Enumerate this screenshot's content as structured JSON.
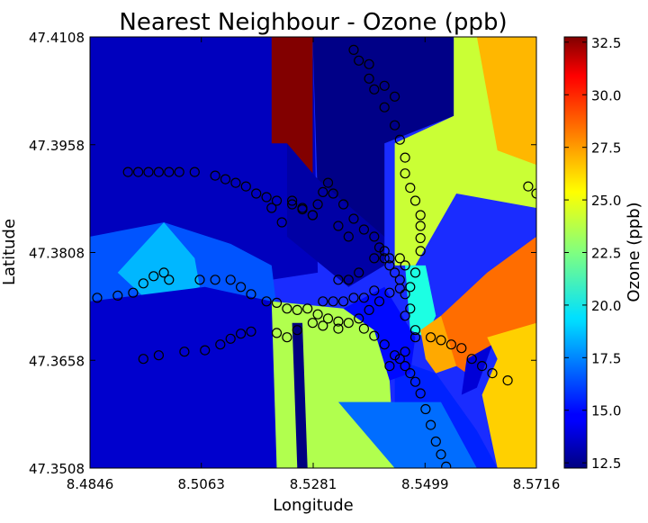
{
  "chart_data": {
    "type": "heatmap",
    "title": "Nearest Neighbour - Ozone (ppb)",
    "xlabel": "Longitude",
    "ylabel": "Latitude",
    "xlim": [
      8.4846,
      8.5716
    ],
    "ylim": [
      47.3508,
      47.4108
    ],
    "x_ticks": [
      "8.4846",
      "8.5063",
      "8.5281",
      "8.5499",
      "8.5716"
    ],
    "y_ticks": [
      "47.3508",
      "47.3658",
      "47.3808",
      "47.3958",
      "47.4108"
    ],
    "colorbar": {
      "label": "Ozone (ppb)",
      "range": [
        12.25,
        32.75
      ],
      "ticks": [
        "12.5",
        "15.0",
        "17.5",
        "20.0",
        "22.5",
        "25.0",
        "27.5",
        "30.0",
        "32.5"
      ],
      "colormap": "jet"
    },
    "regions": [
      {
        "value": 13.5,
        "poly": [
          [
            8.4846,
            47.4108
          ],
          [
            8.528,
            47.4108
          ],
          [
            8.529,
            47.378
          ],
          [
            8.52,
            47.377
          ],
          [
            8.4846,
            47.378
          ]
        ]
      },
      {
        "value": 12.4,
        "poly": [
          [
            8.528,
            47.4108
          ],
          [
            8.5555,
            47.4108
          ],
          [
            8.5555,
            47.3998
          ],
          [
            8.542,
            47.396
          ],
          [
            8.542,
            47.383
          ],
          [
            8.537,
            47.381
          ],
          [
            8.529,
            47.388
          ]
        ]
      },
      {
        "value": 32.7,
        "poly": [
          [
            8.52,
            47.4108
          ],
          [
            8.528,
            47.4108
          ],
          [
            8.528,
            47.391
          ],
          [
            8.525,
            47.392
          ],
          [
            8.523,
            47.396
          ],
          [
            8.52,
            47.396
          ]
        ]
      },
      {
        "value": 13.0,
        "poly": [
          [
            8.523,
            47.396
          ],
          [
            8.529,
            47.391
          ],
          [
            8.542,
            47.383
          ],
          [
            8.542,
            47.379
          ],
          [
            8.535,
            47.376
          ],
          [
            8.523,
            47.383
          ]
        ]
      },
      {
        "value": 24.0,
        "poly": [
          [
            8.5555,
            47.4108
          ],
          [
            8.5716,
            47.4108
          ],
          [
            8.5716,
            47.387
          ],
          [
            8.556,
            47.389
          ],
          [
            8.548,
            47.379
          ],
          [
            8.544,
            47.379
          ],
          [
            8.544,
            47.396
          ],
          [
            8.5555,
            47.3998
          ]
        ]
      },
      {
        "value": 26.5,
        "poly": [
          [
            8.56,
            47.4108
          ],
          [
            8.5716,
            47.4108
          ],
          [
            8.5716,
            47.393
          ],
          [
            8.564,
            47.395
          ]
        ]
      },
      {
        "value": 16.5,
        "poly": [
          [
            8.4846,
            47.383
          ],
          [
            8.499,
            47.385
          ],
          [
            8.512,
            47.382
          ],
          [
            8.52,
            47.379
          ],
          [
            8.521,
            47.373
          ],
          [
            8.507,
            47.376
          ],
          [
            8.496,
            47.374
          ],
          [
            8.4846,
            47.374
          ]
        ]
      },
      {
        "value": 18.5,
        "poly": [
          [
            8.49,
            47.378
          ],
          [
            8.499,
            47.385
          ],
          [
            8.505,
            47.38
          ],
          [
            8.506,
            47.376
          ],
          [
            8.496,
            47.374
          ]
        ]
      },
      {
        "value": 13.8,
        "poly": [
          [
            8.4846,
            47.374
          ],
          [
            8.507,
            47.376
          ],
          [
            8.52,
            47.374
          ],
          [
            8.521,
            47.3508
          ],
          [
            8.4846,
            47.3508
          ]
        ]
      },
      {
        "value": 23.5,
        "poly": [
          [
            8.52,
            47.374
          ],
          [
            8.534,
            47.373
          ],
          [
            8.54,
            47.37
          ],
          [
            8.543,
            47.363
          ],
          [
            8.544,
            47.3508
          ],
          [
            8.521,
            47.3508
          ]
        ]
      },
      {
        "value": 12.2,
        "poly": [
          [
            8.524,
            47.371
          ],
          [
            8.526,
            47.371
          ],
          [
            8.527,
            47.3508
          ],
          [
            8.525,
            47.3508
          ]
        ]
      },
      {
        "value": 17.0,
        "poly": [
          [
            8.533,
            47.36
          ],
          [
            8.544,
            47.36
          ],
          [
            8.553,
            47.36
          ],
          [
            8.56,
            47.3508
          ],
          [
            8.544,
            47.3508
          ]
        ]
      },
      {
        "value": 15.5,
        "poly": [
          [
            8.544,
            47.366
          ],
          [
            8.552,
            47.364
          ],
          [
            8.56,
            47.356
          ],
          [
            8.564,
            47.3508
          ],
          [
            8.56,
            47.3508
          ],
          [
            8.553,
            47.36
          ],
          [
            8.544,
            47.36
          ]
        ]
      },
      {
        "value": 15.0,
        "poly": [
          [
            8.534,
            47.373
          ],
          [
            8.542,
            47.376
          ],
          [
            8.548,
            47.369
          ],
          [
            8.547,
            47.364
          ],
          [
            8.543,
            47.363
          ],
          [
            8.54,
            47.37
          ]
        ]
      },
      {
        "value": 20.5,
        "poly": [
          [
            8.546,
            47.379
          ],
          [
            8.55,
            47.379
          ],
          [
            8.552,
            47.372
          ],
          [
            8.55,
            47.369
          ],
          [
            8.547,
            47.37
          ]
        ]
      },
      {
        "value": 26.8,
        "poly": [
          [
            8.549,
            47.37
          ],
          [
            8.553,
            47.372
          ],
          [
            8.556,
            47.37
          ],
          [
            8.556,
            47.365
          ],
          [
            8.552,
            47.364
          ],
          [
            8.55,
            47.366
          ]
        ]
      },
      {
        "value": 28.0,
        "poly": [
          [
            8.553,
            47.372
          ],
          [
            8.562,
            47.378
          ],
          [
            8.5716,
            47.383
          ],
          [
            8.5716,
            47.371
          ],
          [
            8.564,
            47.369
          ],
          [
            8.558,
            47.364
          ],
          [
            8.556,
            47.365
          ]
        ]
      },
      {
        "value": 14.0,
        "poly": [
          [
            8.558,
            47.366
          ],
          [
            8.563,
            47.368
          ],
          [
            8.56,
            47.362
          ],
          [
            8.557,
            47.361
          ]
        ]
      },
      {
        "value": 26.0,
        "poly": [
          [
            8.562,
            47.369
          ],
          [
            8.5716,
            47.371
          ],
          [
            8.5716,
            47.3508
          ],
          [
            8.564,
            47.3508
          ],
          [
            8.561,
            47.361
          ],
          [
            8.564,
            47.366
          ]
        ]
      }
    ],
    "stations": [
      [
        8.486,
        47.3745
      ],
      [
        8.49,
        47.3748
      ],
      [
        8.493,
        47.3752
      ],
      [
        8.495,
        47.3765
      ],
      [
        8.497,
        47.3775
      ],
      [
        8.499,
        47.378
      ],
      [
        8.5,
        47.377
      ],
      [
        8.506,
        47.377
      ],
      [
        8.509,
        47.377
      ],
      [
        8.512,
        47.377
      ],
      [
        8.514,
        47.376
      ],
      [
        8.516,
        47.375
      ],
      [
        8.519,
        47.374
      ],
      [
        8.521,
        47.3738
      ],
      [
        8.523,
        47.373
      ],
      [
        8.525,
        47.3728
      ],
      [
        8.527,
        47.373
      ],
      [
        8.529,
        47.3722
      ],
      [
        8.531,
        47.3716
      ],
      [
        8.533,
        47.3712
      ],
      [
        8.535,
        47.371
      ],
      [
        8.537,
        47.3716
      ],
      [
        8.539,
        47.3728
      ],
      [
        8.541,
        47.374
      ],
      [
        8.543,
        47.3752
      ],
      [
        8.545,
        47.3758
      ],
      [
        8.547,
        47.376
      ],
      [
        8.548,
        47.378
      ],
      [
        8.495,
        47.366
      ],
      [
        8.498,
        47.3665
      ],
      [
        8.503,
        47.367
      ],
      [
        8.507,
        47.3672
      ],
      [
        8.51,
        47.368
      ],
      [
        8.512,
        47.3688
      ],
      [
        8.514,
        47.3695
      ],
      [
        8.516,
        47.3698
      ],
      [
        8.521,
        47.3696
      ],
      [
        8.523,
        47.369
      ],
      [
        8.525,
        47.37
      ],
      [
        8.528,
        47.371
      ],
      [
        8.53,
        47.3706
      ],
      [
        8.533,
        47.3702
      ],
      [
        8.538,
        47.3702
      ],
      [
        8.54,
        47.3692
      ],
      [
        8.542,
        47.368
      ],
      [
        8.544,
        47.3665
      ],
      [
        8.546,
        47.365
      ],
      [
        8.547,
        47.364
      ],
      [
        8.548,
        47.3628
      ],
      [
        8.549,
        47.3612
      ],
      [
        8.55,
        47.359
      ],
      [
        8.551,
        47.3568
      ],
      [
        8.552,
        47.3545
      ],
      [
        8.553,
        47.3527
      ],
      [
        8.554,
        47.351
      ],
      [
        8.543,
        47.365
      ],
      [
        8.545,
        47.366
      ],
      [
        8.546,
        47.367
      ],
      [
        8.548,
        47.37
      ],
      [
        8.547,
        47.373
      ],
      [
        8.546,
        47.375
      ],
      [
        8.545,
        47.377
      ],
      [
        8.549,
        47.381
      ],
      [
        8.549,
        47.3828
      ],
      [
        8.549,
        47.3845
      ],
      [
        8.549,
        47.386
      ],
      [
        8.548,
        47.388
      ],
      [
        8.547,
        47.3898
      ],
      [
        8.546,
        47.3918
      ],
      [
        8.546,
        47.394
      ],
      [
        8.545,
        47.3965
      ],
      [
        8.544,
        47.3985
      ],
      [
        8.542,
        47.401
      ],
      [
        8.54,
        47.4035
      ],
      [
        8.539,
        47.405
      ],
      [
        8.537,
        47.4075
      ],
      [
        8.536,
        47.409
      ],
      [
        8.539,
        47.407
      ],
      [
        8.542,
        47.404
      ],
      [
        8.544,
        47.4025
      ],
      [
        8.492,
        47.392
      ],
      [
        8.494,
        47.392
      ],
      [
        8.496,
        47.392
      ],
      [
        8.498,
        47.392
      ],
      [
        8.5,
        47.392
      ],
      [
        8.502,
        47.392
      ],
      [
        8.505,
        47.392
      ],
      [
        8.509,
        47.3915
      ],
      [
        8.511,
        47.391
      ],
      [
        8.513,
        47.3905
      ],
      [
        8.515,
        47.39
      ],
      [
        8.517,
        47.389
      ],
      [
        8.519,
        47.3885
      ],
      [
        8.521,
        47.388
      ],
      [
        8.524,
        47.3875
      ],
      [
        8.526,
        47.3868
      ],
      [
        8.528,
        47.386
      ],
      [
        8.529,
        47.3875
      ],
      [
        8.53,
        47.3892
      ],
      [
        8.531,
        47.3905
      ],
      [
        8.532,
        47.389
      ],
      [
        8.534,
        47.3875
      ],
      [
        8.536,
        47.3855
      ],
      [
        8.538,
        47.384
      ],
      [
        8.54,
        47.383
      ],
      [
        8.541,
        47.3815
      ],
      [
        8.542,
        47.38
      ],
      [
        8.543,
        47.379
      ],
      [
        8.544,
        47.378
      ],
      [
        8.546,
        47.379
      ],
      [
        8.52,
        47.387
      ],
      [
        8.522,
        47.385
      ],
      [
        8.533,
        47.3845
      ],
      [
        8.535,
        47.383
      ],
      [
        8.524,
        47.388
      ],
      [
        8.526,
        47.387
      ],
      [
        8.528,
        47.386
      ],
      [
        8.533,
        47.377
      ],
      [
        8.535,
        47.377
      ],
      [
        8.537,
        47.378
      ],
      [
        8.54,
        47.38
      ],
      [
        8.542,
        47.381
      ],
      [
        8.543,
        47.38
      ],
      [
        8.545,
        47.38
      ],
      [
        8.53,
        47.374
      ],
      [
        8.532,
        47.374
      ],
      [
        8.534,
        47.374
      ],
      [
        8.536,
        47.3745
      ],
      [
        8.538,
        47.3745
      ],
      [
        8.54,
        47.3755
      ],
      [
        8.546,
        47.372
      ],
      [
        8.548,
        47.369
      ],
      [
        8.551,
        47.369
      ],
      [
        8.553,
        47.3686
      ],
      [
        8.555,
        47.368
      ],
      [
        8.557,
        47.3675
      ],
      [
        8.559,
        47.366
      ],
      [
        8.561,
        47.365
      ],
      [
        8.563,
        47.364
      ],
      [
        8.566,
        47.363
      ],
      [
        8.57,
        47.39
      ],
      [
        8.5716,
        47.389
      ]
    ]
  }
}
